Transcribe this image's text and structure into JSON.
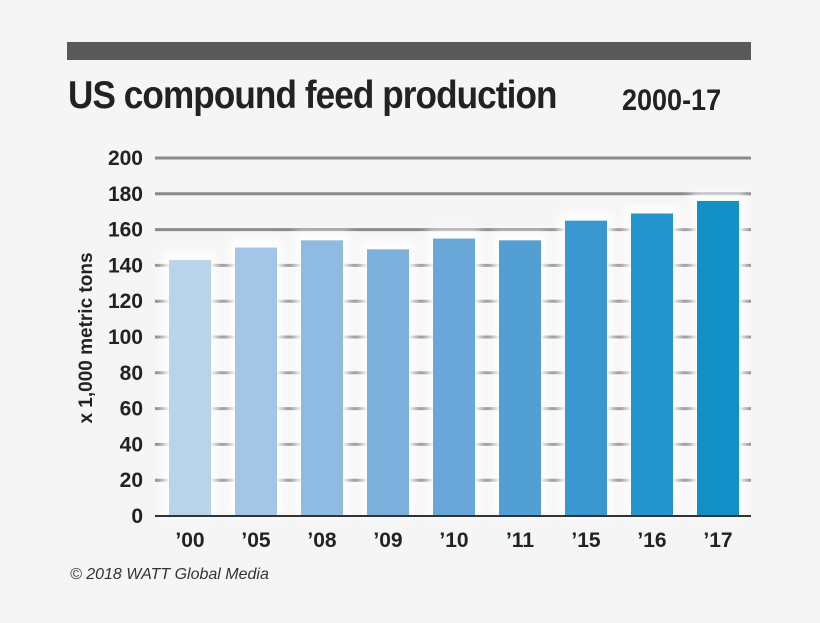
{
  "chart_data": {
    "type": "bar",
    "title": "US compound feed production",
    "subtitle": "2000-17",
    "xlabel": "",
    "ylabel": "x 1,000 metric tons",
    "categories": [
      "’00",
      "’05",
      "’08",
      "’09",
      "’10",
      "’11",
      "’15",
      "’16",
      "’17"
    ],
    "values": [
      143,
      150,
      154,
      149,
      155,
      154,
      165,
      169,
      176
    ],
    "ylim": [
      0,
      200
    ],
    "yticks": [
      0,
      20,
      40,
      60,
      80,
      100,
      120,
      140,
      160,
      180,
      200
    ],
    "grid": true,
    "colors": [
      "#b9d3ea",
      "#a4c6e6",
      "#8fbbe2",
      "#7db1dd",
      "#67a8d9",
      "#529fd4",
      "#3998cf",
      "#2394cc",
      "#1490c9"
    ]
  },
  "credit": "© 2018 WATT Global Media"
}
